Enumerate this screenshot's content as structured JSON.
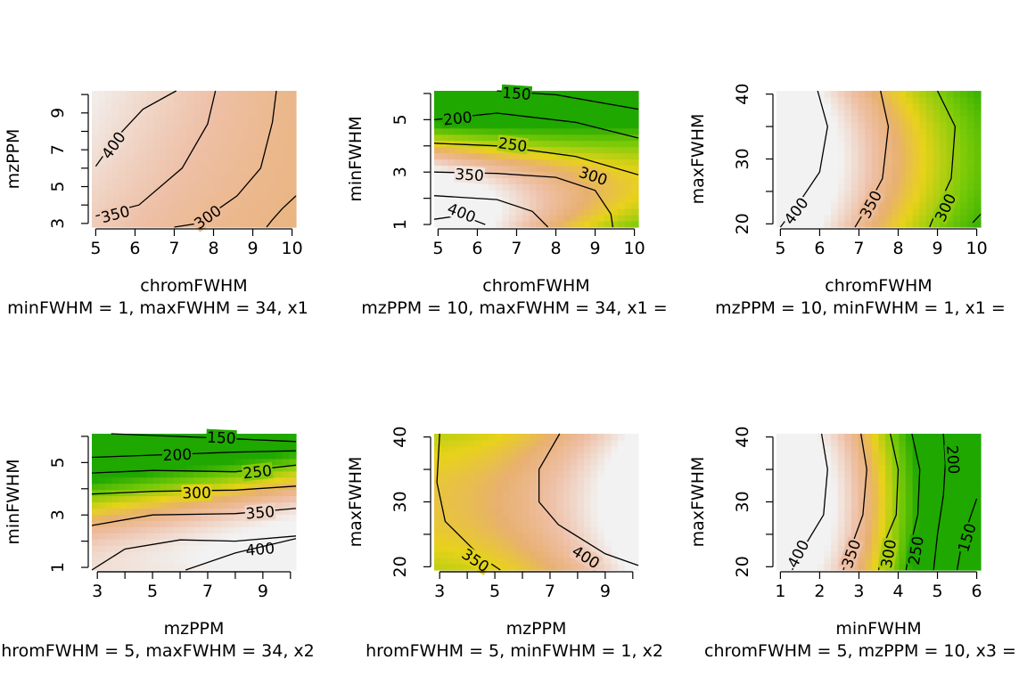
{
  "chart_data": [
    {
      "type": "heatmap",
      "xlabel": "chromFWHM",
      "ylabel": "mzPPM",
      "xlim": [
        4.9,
        10.1
      ],
      "ylim": [
        2.8,
        10.2
      ],
      "xticks": [
        5,
        6,
        7,
        8,
        9,
        10
      ],
      "yticks": [
        3,
        5,
        7,
        9
      ],
      "yminor": [
        4,
        6,
        8,
        10
      ],
      "colorscale": [
        [
          100,
          "#1fa800"
        ],
        [
          200,
          "#7ccb08"
        ],
        [
          280,
          "#e8d21a"
        ],
        [
          330,
          "#e8b070"
        ],
        [
          380,
          "#eebfa5"
        ],
        [
          450,
          "#f2f2f2"
        ]
      ],
      "surface": {
        "c": 380,
        "ax": -18,
        "bx": 2,
        "ay": 7,
        "by": -0.5,
        "axy": -2.7,
        "x0": 7.5,
        "y0": 6.5,
        "xs": 2.6,
        "ys": 3.7
      },
      "contours": [
        {
          "value": 400,
          "label": "400",
          "points": [
            [
              7.05,
              10.2
            ],
            [
              6.2,
              9.2
            ],
            [
              5.5,
              7.6
            ],
            [
              5.0,
              6.1
            ]
          ],
          "label_at": [
            5.45,
            7.25
          ]
        },
        {
          "value": 350,
          "label": "350",
          "points": [
            [
              8.05,
              10.2
            ],
            [
              7.85,
              8.4
            ],
            [
              7.2,
              6.0
            ],
            [
              6.1,
              4.0
            ],
            [
              5.0,
              3.4
            ]
          ],
          "label_at": [
            5.5,
            3.5
          ]
        },
        {
          "value": 300,
          "label": "300",
          "points": [
            [
              9.6,
              10.2
            ],
            [
              9.5,
              8.5
            ],
            [
              9.2,
              6.0
            ],
            [
              8.6,
              4.5
            ],
            [
              7.6,
              3.0
            ],
            [
              7.0,
              2.8
            ]
          ],
          "label_at": [
            7.85,
            3.35
          ]
        },
        {
          "value": 250,
          "label": "",
          "points": [
            [
              10.1,
              4.5
            ],
            [
              9.75,
              3.8
            ],
            [
              9.5,
              3.2
            ],
            [
              9.35,
              2.8
            ]
          ],
          "label_at": null
        }
      ],
      "subtitle": "minFWHM = 1, maxFWHM = 34, x1"
    },
    {
      "type": "heatmap",
      "xlabel": "chromFWHM",
      "ylabel": "minFWHM",
      "xlim": [
        4.9,
        10.1
      ],
      "ylim": [
        0.9,
        6.1
      ],
      "xticks": [
        5,
        6,
        7,
        8,
        9,
        10
      ],
      "yticks": [
        1,
        3,
        5
      ],
      "yminor": [
        2,
        4,
        6
      ],
      "colorscale": [
        [
          100,
          "#1fa800"
        ],
        [
          200,
          "#7ccb08"
        ],
        [
          280,
          "#e8d21a"
        ],
        [
          330,
          "#e8b070"
        ],
        [
          380,
          "#eebfa5"
        ],
        [
          450,
          "#f2f2f2"
        ]
      ],
      "surface": {
        "c": 300,
        "ax": -35,
        "bx": 5,
        "ay": -150,
        "by": -60,
        "axy": 30,
        "x0": 7.5,
        "y0": 3.5,
        "xs": 2.6,
        "ys": 2.6
      },
      "contours": [
        {
          "value": 150,
          "label": "150",
          "points": [
            [
              6.5,
              6.1
            ],
            [
              8.0,
              5.95
            ],
            [
              10.1,
              5.4
            ]
          ],
          "label_at": [
            7.0,
            6.0
          ]
        },
        {
          "value": 200,
          "label": "200",
          "points": [
            [
              4.9,
              5.0
            ],
            [
              6.5,
              5.25
            ],
            [
              8.5,
              4.9
            ],
            [
              10.1,
              4.3
            ]
          ],
          "label_at": [
            5.5,
            5.05
          ]
        },
        {
          "value": 250,
          "label": "250",
          "points": [
            [
              4.9,
              4.1
            ],
            [
              6.5,
              4.0
            ],
            [
              8.5,
              3.6
            ],
            [
              10.1,
              2.9
            ]
          ],
          "label_at": [
            6.9,
            4.05
          ]
        },
        {
          "value": 300,
          "label": "300",
          "points": [
            [
              4.9,
              3.0
            ],
            [
              6.5,
              2.95
            ],
            [
              8.0,
              2.8
            ],
            [
              9.0,
              2.3
            ],
            [
              9.4,
              1.4
            ],
            [
              9.45,
              0.9
            ]
          ],
          "label_at": [
            8.95,
            2.85
          ]
        },
        {
          "value": 350,
          "label": "350",
          "points": [
            [
              4.9,
              2.1
            ],
            [
              6.5,
              1.95
            ],
            [
              7.4,
              1.5
            ],
            [
              7.8,
              0.9
            ]
          ],
          "label_at": [
            5.8,
            2.9
          ]
        },
        {
          "value": 400,
          "label": "400",
          "points": [
            [
              4.9,
              1.2
            ],
            [
              5.6,
              1.35
            ],
            [
              6.2,
              1.0
            ]
          ],
          "label_at": [
            5.6,
            1.45
          ]
        }
      ],
      "subtitle": "mzPPM = 10, maxFWHM = 34, x1 ="
    },
    {
      "type": "heatmap",
      "xlabel": "chromFWHM",
      "ylabel": "maxFWHM",
      "xlim": [
        4.9,
        10.1
      ],
      "ylim": [
        19.5,
        40.5
      ],
      "xticks": [
        5,
        6,
        7,
        8,
        9,
        10
      ],
      "yticks": [
        20,
        30,
        40
      ],
      "yminor": [
        25,
        35
      ],
      "colorscale": [
        [
          100,
          "#1fa800"
        ],
        [
          200,
          "#7ccb08"
        ],
        [
          280,
          "#e8d21a"
        ],
        [
          330,
          "#e8b070"
        ],
        [
          380,
          "#eebfa5"
        ],
        [
          450,
          "#f2f2f2"
        ]
      ],
      "surface": {
        "c": 370,
        "ax": -105,
        "bx": 3,
        "ay": 0,
        "by": -12,
        "axy": 0,
        "x0": 7.5,
        "y0": 30,
        "xs": 2.6,
        "ys": 10.5
      },
      "contours": [
        {
          "value": 400,
          "label": "400",
          "points": [
            [
              5.95,
              40.5
            ],
            [
              6.2,
              35
            ],
            [
              6.0,
              28
            ],
            [
              5.5,
              23.5
            ],
            [
              5.0,
              19.5
            ]
          ],
          "label_at": [
            5.4,
            22.0
          ]
        },
        {
          "value": 350,
          "label": "350",
          "points": [
            [
              7.55,
              40.5
            ],
            [
              7.75,
              35
            ],
            [
              7.6,
              27
            ],
            [
              7.2,
              22.5
            ],
            [
              6.9,
              19.5
            ]
          ],
          "label_at": [
            7.3,
            23.0
          ]
        },
        {
          "value": 300,
          "label": "300",
          "points": [
            [
              9.0,
              40.5
            ],
            [
              9.45,
              35
            ],
            [
              9.35,
              27
            ],
            [
              9.0,
              22.5
            ],
            [
              8.8,
              19.5
            ]
          ],
          "label_at": [
            9.2,
            22.5
          ]
        },
        {
          "value": 250,
          "label": "",
          "points": [
            [
              10.1,
              21.5
            ],
            [
              9.9,
              20.2
            ]
          ],
          "label_at": null
        }
      ],
      "subtitle": "mzPPM = 10, minFWHM = 1, x1 ="
    },
    {
      "type": "heatmap",
      "xlabel": "mzPPM",
      "ylabel": "minFWHM",
      "xlim": [
        2.8,
        10.2
      ],
      "ylim": [
        0.9,
        6.1
      ],
      "xticks": [
        3,
        5,
        7,
        9
      ],
      "yticks": [
        1,
        3,
        5
      ],
      "xminor": [
        4,
        6,
        8,
        10
      ],
      "yminor": [
        2,
        4,
        6
      ],
      "colorscale": [
        [
          100,
          "#1fa800"
        ],
        [
          200,
          "#7ccb08"
        ],
        [
          280,
          "#e8d21a"
        ],
        [
          330,
          "#e8b070"
        ],
        [
          380,
          "#eebfa5"
        ],
        [
          450,
          "#f2f2f2"
        ]
      ],
      "surface": {
        "c": 320,
        "ax": 40,
        "bx": 0,
        "ay": -160,
        "by": -50,
        "axy": 15,
        "x0": 6.5,
        "y0": 3.5,
        "xs": 3.7,
        "ys": 2.6
      },
      "contours": [
        {
          "value": 150,
          "label": "150",
          "points": [
            [
              3.5,
              6.1
            ],
            [
              7,
              5.95
            ],
            [
              10.2,
              5.8
            ]
          ],
          "label_at": [
            7.5,
            5.95
          ]
        },
        {
          "value": 200,
          "label": "200",
          "points": [
            [
              2.8,
              5.2
            ],
            [
              5.5,
              5.3
            ],
            [
              8,
              5.4
            ],
            [
              10.2,
              5.45
            ]
          ],
          "label_at": [
            5.9,
            5.3
          ]
        },
        {
          "value": 250,
          "label": "250",
          "points": [
            [
              2.8,
              4.6
            ],
            [
              5,
              4.7
            ],
            [
              8,
              4.65
            ],
            [
              10.2,
              4.9
            ]
          ],
          "label_at": [
            8.8,
            4.65
          ]
        },
        {
          "value": 300,
          "label": "300",
          "points": [
            [
              2.8,
              3.8
            ],
            [
              5,
              3.9
            ],
            [
              8,
              3.95
            ],
            [
              10.2,
              4.1
            ]
          ],
          "label_at": [
            6.6,
            3.85
          ]
        },
        {
          "value": 350,
          "label": "350",
          "points": [
            [
              2.8,
              2.6
            ],
            [
              5,
              3.0
            ],
            [
              8,
              3.05
            ],
            [
              10.2,
              3.25
            ]
          ],
          "label_at": [
            8.9,
            3.1
          ]
        },
        {
          "value": 400,
          "label": "400",
          "points": [
            [
              2.8,
              0.9
            ],
            [
              4,
              1.7
            ],
            [
              6,
              2.05
            ],
            [
              8,
              2.0
            ],
            [
              10.2,
              2.2
            ]
          ],
          "label_at": [
            8.9,
            1.7
          ]
        },
        {
          "value": 420,
          "label": "",
          "points": [
            [
              6.2,
              0.9
            ],
            [
              8,
              1.55
            ],
            [
              10.2,
              2.1
            ]
          ],
          "label_at": null
        }
      ],
      "subtitle": "hromFWHM = 5, maxFWHM = 34, x2"
    },
    {
      "type": "heatmap",
      "xlabel": "mzPPM",
      "ylabel": "maxFWHM",
      "xlim": [
        2.8,
        10.2
      ],
      "ylim": [
        19.5,
        40.5
      ],
      "xticks": [
        3,
        5,
        7,
        9
      ],
      "yticks": [
        20,
        30,
        40
      ],
      "xminor": [
        4,
        6,
        8,
        10
      ],
      "yminor": [
        25,
        35
      ],
      "colorscale": [
        [
          100,
          "#1fa800"
        ],
        [
          200,
          "#7ccb08"
        ],
        [
          280,
          "#e8d21a"
        ],
        [
          330,
          "#e8b070"
        ],
        [
          380,
          "#eebfa5"
        ],
        [
          450,
          "#f2f2f2"
        ]
      ],
      "surface": {
        "c": 365,
        "ax": 55,
        "bx": 12,
        "ay": 0,
        "by": -14,
        "axy": 0,
        "x0": 6.5,
        "y0": 30,
        "xs": 3.7,
        "ys": 10.5
      },
      "contours": [
        {
          "value": 350,
          "label": "350",
          "points": [
            [
              3.0,
              40.5
            ],
            [
              2.9,
              33
            ],
            [
              3.2,
              27
            ],
            [
              4.5,
              21.5
            ],
            [
              5.2,
              19.5
            ]
          ],
          "label_at": [
            4.3,
            21.0
          ]
        },
        {
          "value": 400,
          "label": "400",
          "points": [
            [
              7.35,
              40.5
            ],
            [
              6.6,
              35
            ],
            [
              6.6,
              30
            ],
            [
              7.3,
              26.5
            ],
            [
              9.0,
              22
            ],
            [
              10.2,
              20.2
            ]
          ],
          "label_at": [
            8.3,
            21.5
          ]
        }
      ],
      "subtitle": "hromFWHM = 5, minFWHM = 1, x2"
    },
    {
      "type": "heatmap",
      "xlabel": "minFWHM",
      "ylabel": "maxFWHM",
      "xlim": [
        0.9,
        6.1
      ],
      "ylim": [
        19.5,
        40.5
      ],
      "xticks": [
        1,
        2,
        3,
        4,
        5,
        6
      ],
      "yticks": [
        20,
        30,
        40
      ],
      "yminor": [
        25,
        35
      ],
      "colorscale": [
        [
          100,
          "#1fa800"
        ],
        [
          200,
          "#7ccb08"
        ],
        [
          280,
          "#e8d21a"
        ],
        [
          330,
          "#e8b070"
        ],
        [
          380,
          "#eebfa5"
        ],
        [
          450,
          "#f2f2f2"
        ]
      ],
      "surface": {
        "c": 300,
        "ax": -215,
        "bx": -50,
        "ay": 0,
        "by": -10,
        "axy": 0,
        "x0": 3.5,
        "y0": 30,
        "xs": 2.6,
        "ys": 10.5
      },
      "contours": [
        {
          "value": 400,
          "label": "400",
          "points": [
            [
              2.05,
              40.5
            ],
            [
              2.2,
              35
            ],
            [
              2.1,
              28
            ],
            [
              1.6,
              23
            ],
            [
              1.3,
              19.5
            ]
          ],
          "label_at": [
            1.45,
            22.0
          ]
        },
        {
          "value": 350,
          "label": "350",
          "points": [
            [
              3.05,
              40.5
            ],
            [
              3.2,
              35
            ],
            [
              3.1,
              28
            ],
            [
              2.8,
              23
            ],
            [
              2.6,
              19.5
            ]
          ],
          "label_at": [
            2.8,
            22.0
          ]
        },
        {
          "value": 300,
          "label": "300",
          "points": [
            [
              3.8,
              40.5
            ],
            [
              4.0,
              35
            ],
            [
              3.95,
              28
            ],
            [
              3.6,
              23
            ],
            [
              3.5,
              19.5
            ]
          ],
          "label_at": [
            3.75,
            22.0
          ]
        },
        {
          "value": 250,
          "label": "250",
          "points": [
            [
              4.35,
              40.5
            ],
            [
              4.55,
              35
            ],
            [
              4.5,
              28
            ],
            [
              4.3,
              23
            ],
            [
              4.2,
              19.5
            ]
          ],
          "label_at": [
            4.45,
            22.5
          ]
        },
        {
          "value": 200,
          "label": "200",
          "points": [
            [
              5.15,
              40.5
            ],
            [
              5.2,
              36
            ],
            [
              5.15,
              31
            ],
            [
              5.0,
              25
            ],
            [
              4.9,
              19.5
            ]
          ],
          "label_at": [
            5.4,
            36.5
          ]
        },
        {
          "value": 150,
          "label": "150",
          "points": [
            [
              6.0,
              30.5
            ],
            [
              5.8,
              27
            ],
            [
              5.6,
              23
            ],
            [
              5.5,
              19.5
            ]
          ],
          "label_at": [
            5.75,
            24.5
          ]
        }
      ],
      "subtitle": "chromFWHM = 5, mzPPM = 10, x3 ="
    }
  ]
}
